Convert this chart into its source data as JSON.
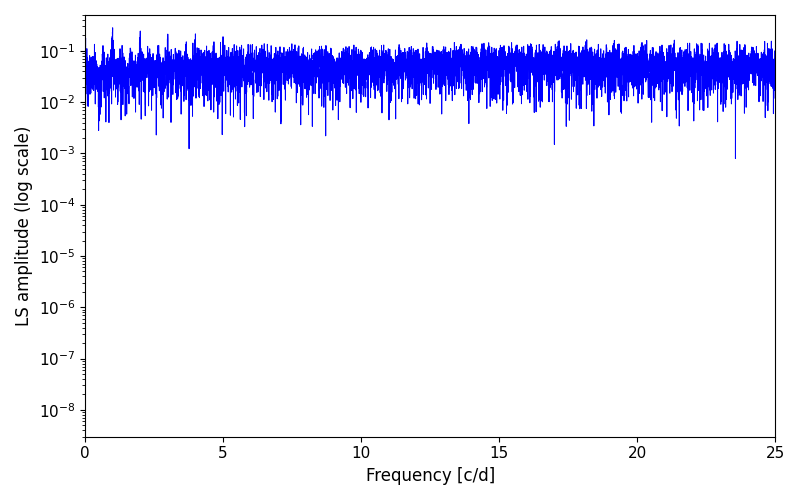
{
  "line_color": "#0000ff",
  "line_width": 0.7,
  "xlabel": "Frequency [c/d]",
  "ylabel": "LS amplitude (log scale)",
  "xlim": [
    0,
    25
  ],
  "ylim": [
    3e-09,
    0.5
  ],
  "xticks": [
    0,
    5,
    10,
    15,
    20,
    25
  ],
  "ylabel_fontsize": 12,
  "xlabel_fontsize": 12,
  "tick_labelsize": 11,
  "figsize": [
    8.0,
    5.0
  ],
  "dpi": 100,
  "background_color": "#ffffff",
  "seed": 42,
  "n_freq": 6000,
  "freq_max": 25.0
}
